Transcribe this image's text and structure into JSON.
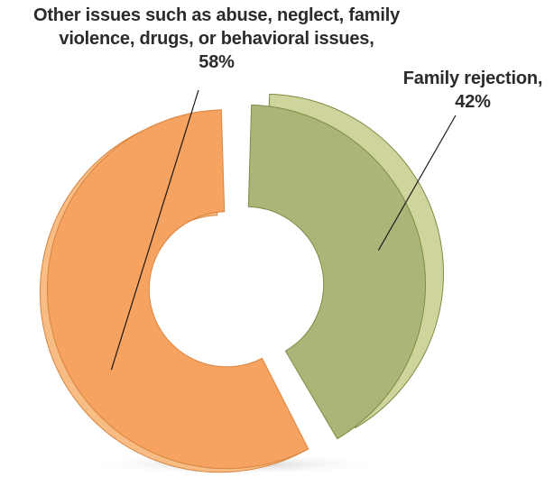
{
  "chart_data": {
    "type": "pie",
    "title": "",
    "slices": [
      {
        "key": "other",
        "label_lines": [
          "Other issues such as abuse, neglect, family",
          "violence, drugs, or behavioral issues,"
        ],
        "pct_label": "58%",
        "value": 58,
        "color": "#f6a260",
        "side_color": "#f7bd84",
        "edge_color": "#d8843f"
      },
      {
        "key": "family",
        "label_lines": [
          "Family rejection,"
        ],
        "pct_label": "42%",
        "value": 42,
        "color": "#aab677",
        "side_color": "#cfd49c",
        "edge_color": "#7f8a45"
      }
    ],
    "donut": true,
    "exploded": true,
    "style_3d": true,
    "legend": "none"
  }
}
